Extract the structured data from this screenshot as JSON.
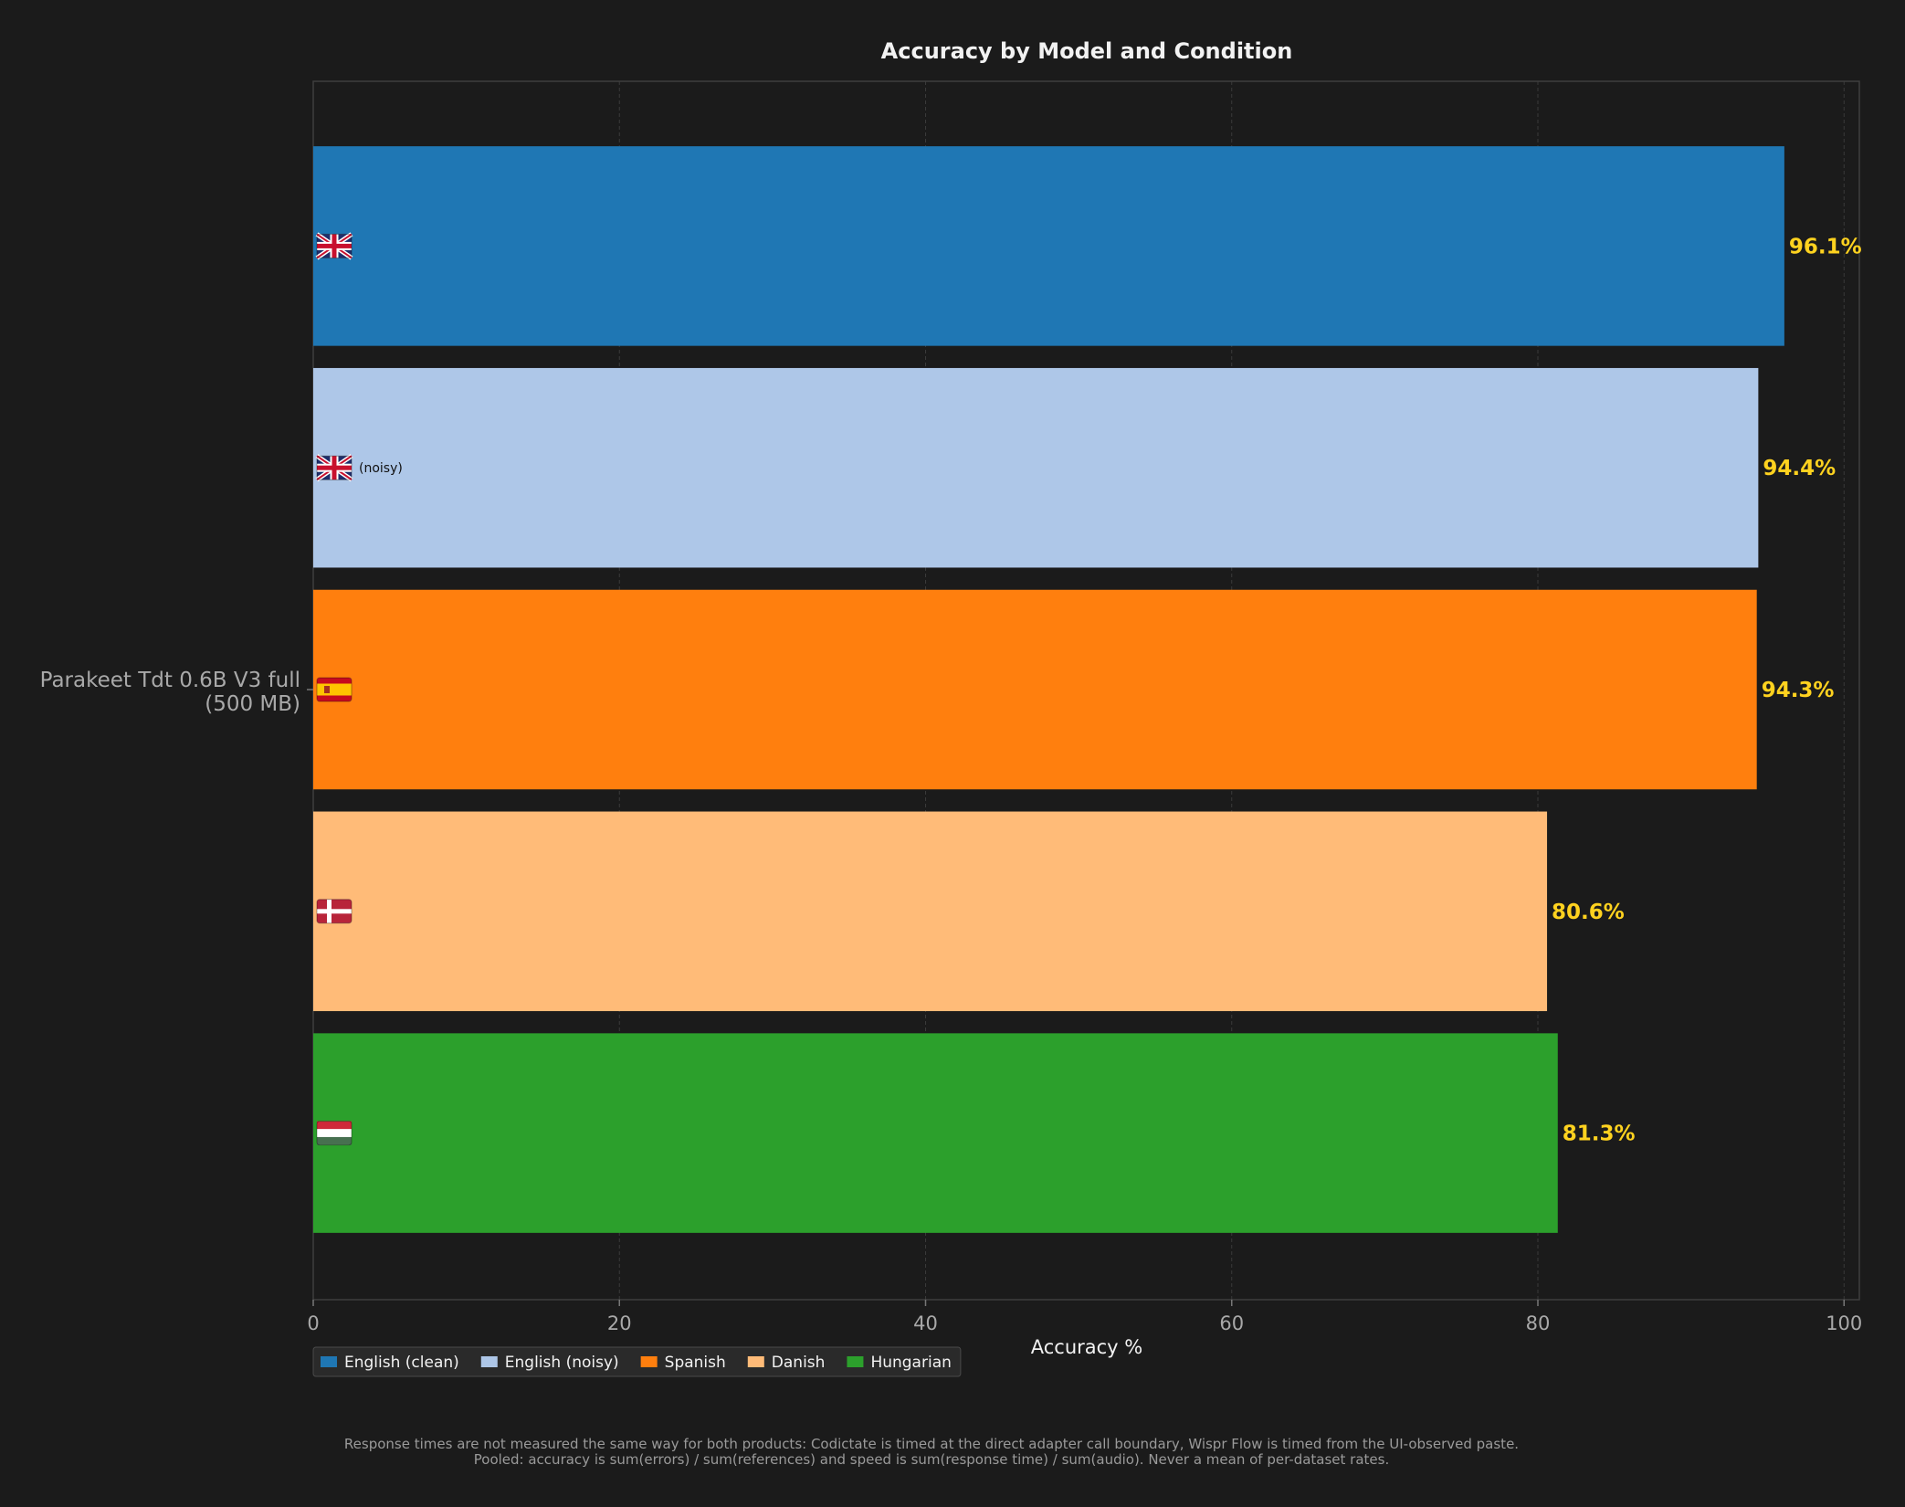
{
  "chart_data": {
    "type": "bar",
    "orientation": "horizontal",
    "title": "Accuracy by Model and Condition",
    "xlabel": "Accuracy %",
    "ylabel": "",
    "xlim": [
      0,
      101
    ],
    "xticks": [
      0,
      20,
      40,
      60,
      80,
      100
    ],
    "grid": true,
    "legend_position": "lower-left",
    "categories": [
      "Parakeet Tdt 0.6B V3 full\n(500 MB)"
    ],
    "series": [
      {
        "name": "English (clean)",
        "values": [
          96.1
        ],
        "value_label": "96.1%",
        "color": "#1f77b4",
        "flag": "uk-flag-icon",
        "bar_note": ""
      },
      {
        "name": "English (noisy)",
        "values": [
          94.4
        ],
        "value_label": "94.4%",
        "color": "#aec7e8",
        "flag": "uk-flag-icon",
        "bar_note": "(noisy)"
      },
      {
        "name": "Spanish",
        "values": [
          94.3
        ],
        "value_label": "94.3%",
        "color": "#ff7f0e",
        "flag": "spain-flag-icon",
        "bar_note": ""
      },
      {
        "name": "Danish",
        "values": [
          80.6
        ],
        "value_label": "80.6%",
        "color": "#ffbb78",
        "flag": "denmark-flag-icon",
        "bar_note": ""
      },
      {
        "name": "Hungarian",
        "values": [
          81.3
        ],
        "value_label": "81.3%",
        "color": "#2ca02c",
        "flag": "hungary-flag-icon",
        "bar_note": ""
      }
    ],
    "footnote": [
      "Response times are not measured the same way for both products: Codictate is timed at the direct adapter call boundary, Wispr Flow is timed from the UI-observed paste.",
      "Pooled: accuracy is sum(errors) / sum(references) and speed is sum(response time) / sum(audio). Never a mean of per-dataset rates."
    ]
  }
}
